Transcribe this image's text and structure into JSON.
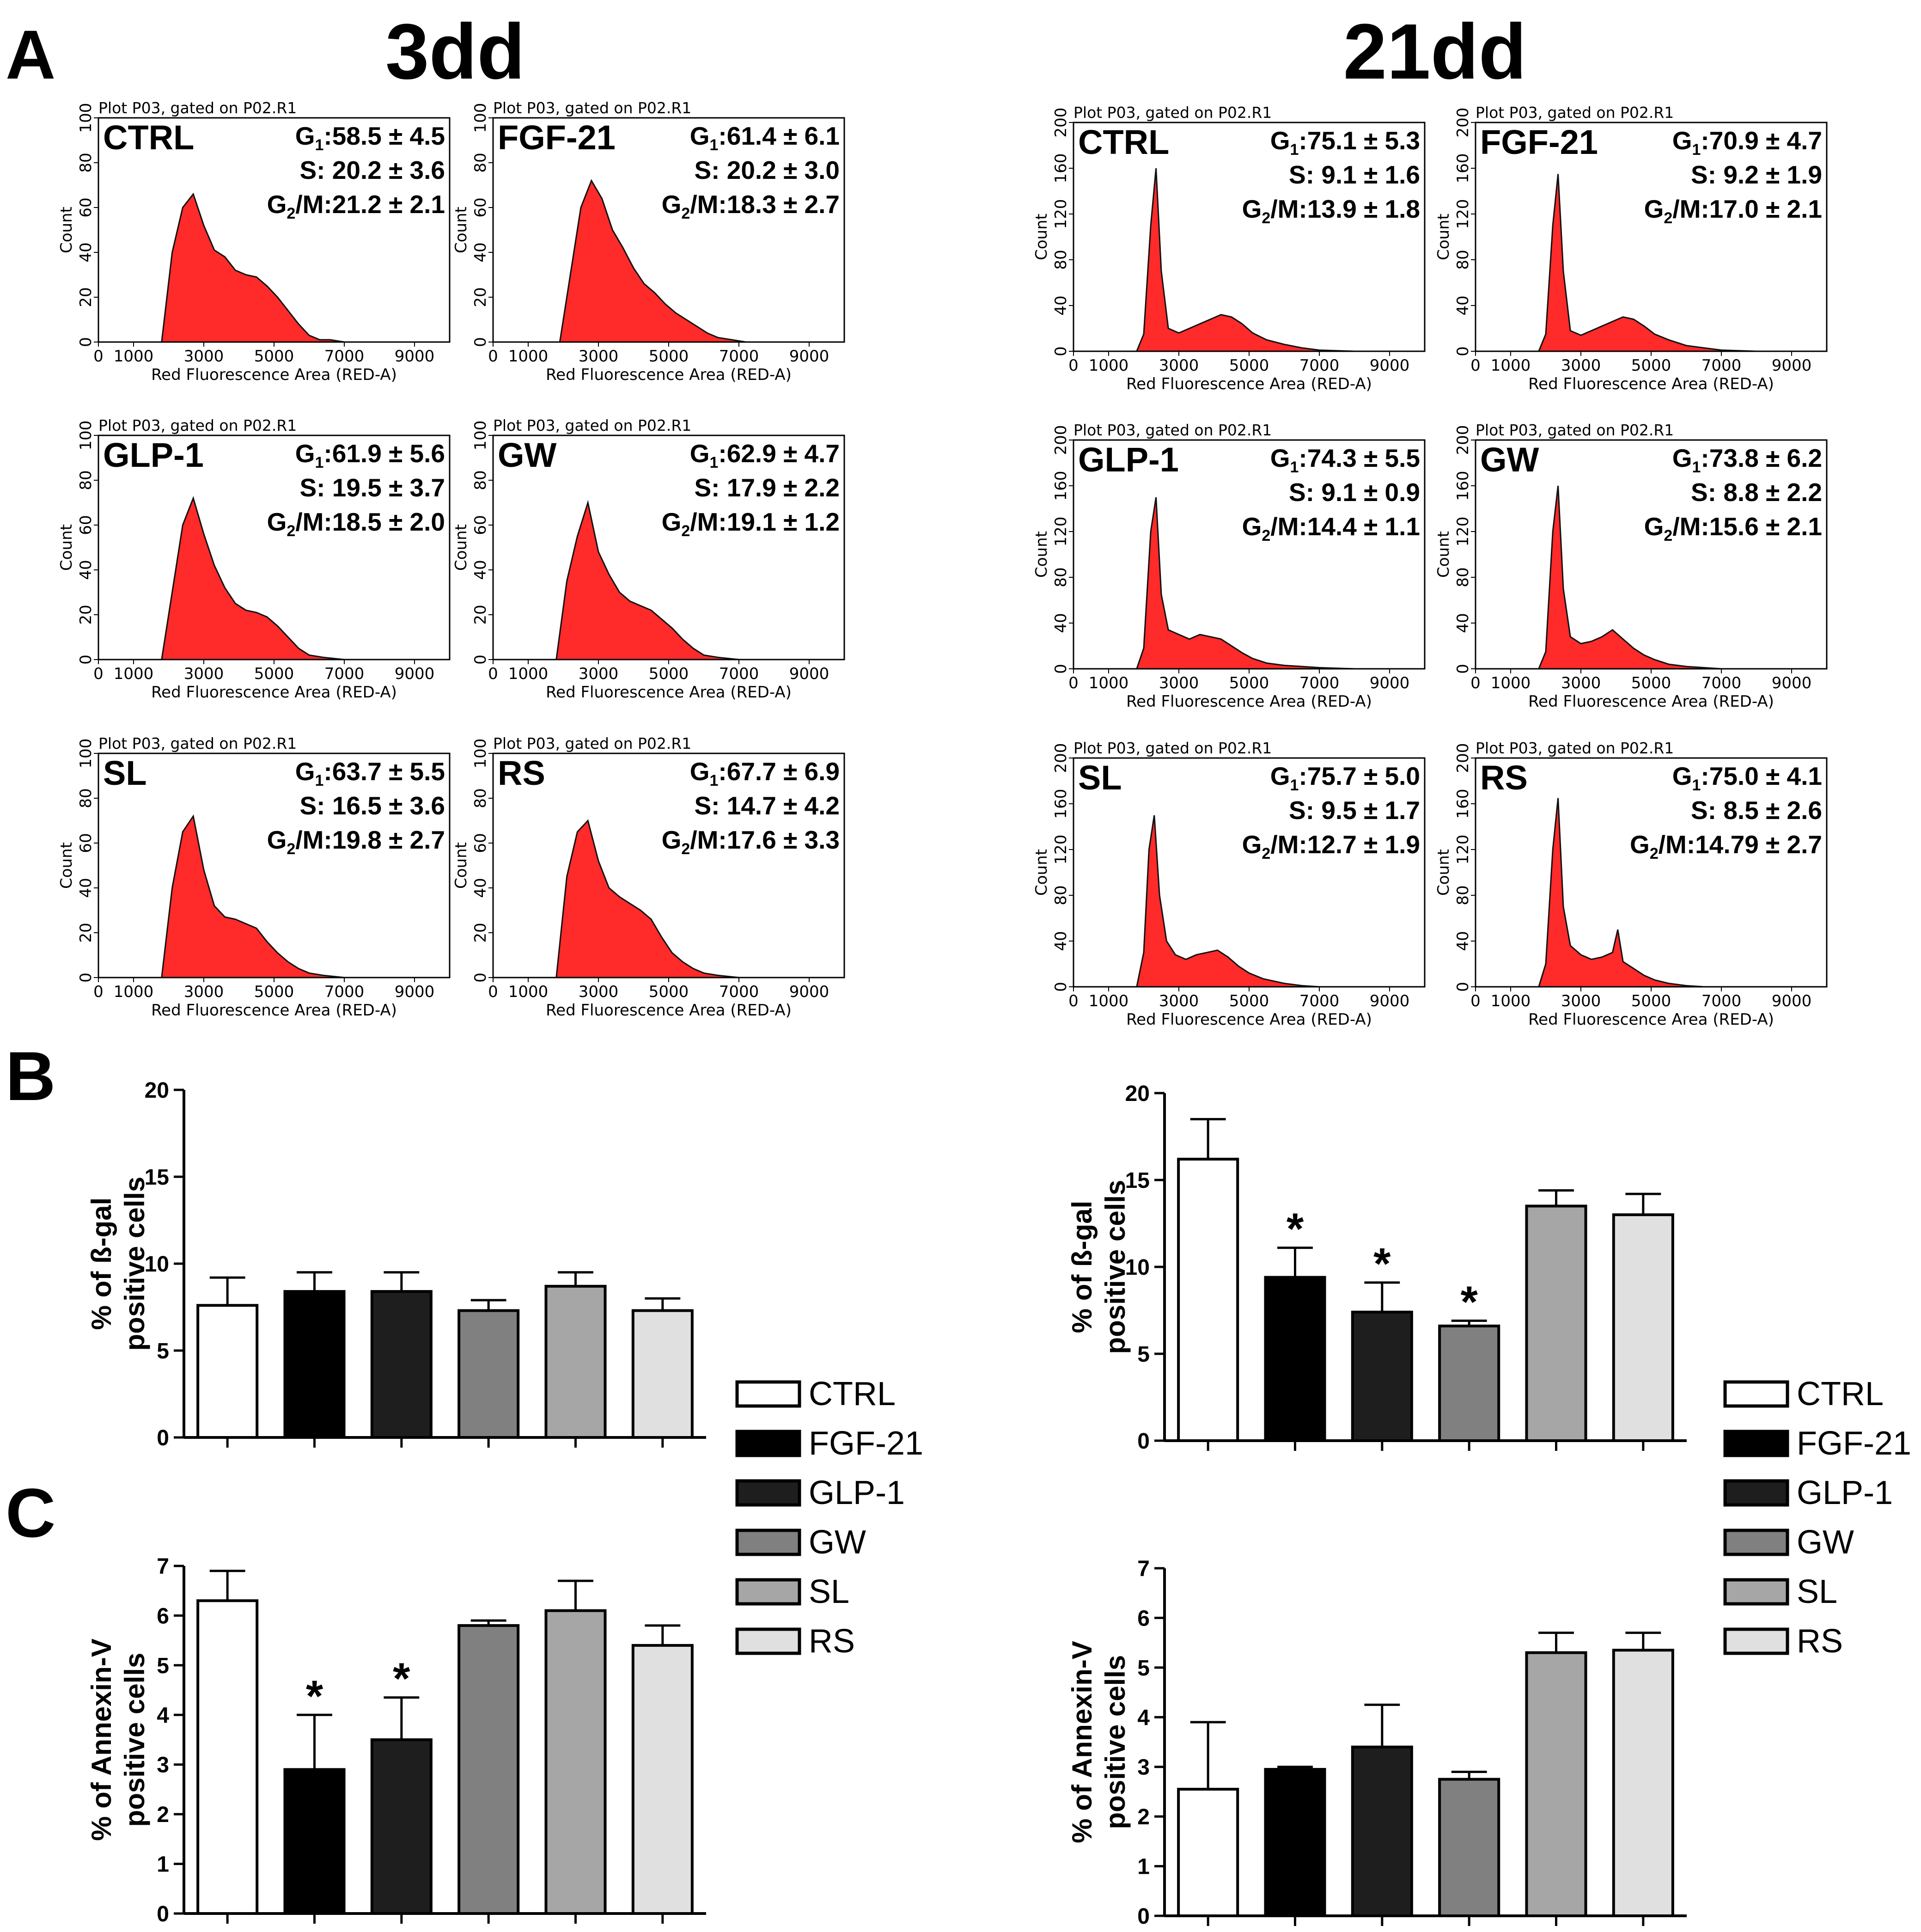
{
  "panel_letters": [
    "A",
    "B",
    "C"
  ],
  "column_titles": [
    "3dd",
    "21dd"
  ],
  "legend": {
    "items": [
      {
        "label": "CTRL",
        "color": "#ffffff"
      },
      {
        "label": "FGF-21",
        "color": "#000000"
      },
      {
        "label": "GLP-1",
        "color": "#1e1e1e"
      },
      {
        "label": "GW",
        "color": "#808080"
      },
      {
        "label": "SL",
        "color": "#a6a6a6"
      },
      {
        "label": "RS",
        "color": "#e0e0e0"
      }
    ]
  },
  "chart_data": [
    {
      "type": "area",
      "panel": "A",
      "column": "3dd",
      "group": "CTRL",
      "title": "Plot P03, gated on P02.R1",
      "xlabel": "Red Fluorescence Area (RED-A)",
      "ylabel": "Count",
      "xlim": [
        0,
        10000
      ],
      "ylim": [
        0,
        100
      ],
      "xticks": [
        "0",
        "1000",
        "3000",
        "5000",
        "7000",
        "9000"
      ],
      "yticks": [
        "0",
        "20",
        "40",
        "60",
        "80",
        "100"
      ],
      "stats": {
        "g1": "58.5 ± 4.5",
        "s": "20.2 ± 3.6",
        "g2m": "21.2 ± 2.1"
      },
      "x": [
        1800,
        2100,
        2400,
        2700,
        3000,
        3300,
        3600,
        3900,
        4200,
        4500,
        4800,
        5100,
        5400,
        5700,
        6000,
        6300,
        6600,
        7000,
        7500,
        8500,
        9500
      ],
      "values": [
        0,
        40,
        60,
        66,
        52,
        41,
        38,
        32,
        30,
        29,
        25,
        20,
        14,
        8,
        3,
        1,
        1,
        0,
        0,
        0,
        0
      ]
    },
    {
      "type": "area",
      "panel": "A",
      "column": "3dd",
      "group": "FGF-21",
      "title": "Plot P03, gated on P02.R1",
      "xlabel": "Red Fluorescence Area (RED-A)",
      "ylabel": "Count",
      "xlim": [
        0,
        10000
      ],
      "ylim": [
        0,
        100
      ],
      "xticks": [
        "0",
        "1000",
        "3000",
        "5000",
        "7000",
        "9000"
      ],
      "yticks": [
        "0",
        "20",
        "40",
        "60",
        "80",
        "100"
      ],
      "stats": {
        "g1": "61.4 ± 6.1",
        "s": "20.2 ± 3.0",
        "g2m": "18.3 ± 2.7"
      },
      "x": [
        1900,
        2200,
        2500,
        2800,
        3100,
        3400,
        3700,
        4000,
        4300,
        4600,
        4900,
        5200,
        5500,
        5800,
        6100,
        6400,
        6800,
        7200,
        8000,
        9000
      ],
      "values": [
        0,
        30,
        60,
        72,
        64,
        50,
        42,
        33,
        26,
        22,
        17,
        13,
        10,
        7,
        4,
        2,
        1,
        0,
        0,
        0
      ]
    },
    {
      "type": "area",
      "panel": "A",
      "column": "3dd",
      "group": "GLP-1",
      "title": "Plot P03, gated on P02.R1",
      "xlabel": "Red Fluorescence Area (RED-A)",
      "ylabel": "Count",
      "xlim": [
        0,
        10000
      ],
      "ylim": [
        0,
        100
      ],
      "xticks": [
        "0",
        "1000",
        "3000",
        "5000",
        "7000",
        "9000"
      ],
      "yticks": [
        "0",
        "20",
        "40",
        "60",
        "80",
        "100"
      ],
      "stats": {
        "g1": "61.9 ± 5.6",
        "s": "19.5 ± 3.7",
        "g2m": "18.5 ± 2.0"
      },
      "x": [
        1800,
        2100,
        2400,
        2700,
        3000,
        3300,
        3600,
        3900,
        4200,
        4500,
        4800,
        5100,
        5400,
        5700,
        6000,
        6400,
        7000,
        8000,
        9000
      ],
      "values": [
        0,
        30,
        60,
        72,
        56,
        42,
        32,
        25,
        22,
        21,
        19,
        15,
        10,
        5,
        2,
        1,
        0,
        0,
        0
      ]
    },
    {
      "type": "area",
      "panel": "A",
      "column": "3dd",
      "group": "GW",
      "title": "Plot P03, gated on P02.R1",
      "xlabel": "Red Fluorescence Area (RED-A)",
      "ylabel": "Count",
      "xlim": [
        0,
        10000
      ],
      "ylim": [
        0,
        100
      ],
      "xticks": [
        "0",
        "1000",
        "3000",
        "5000",
        "7000",
        "9000"
      ],
      "yticks": [
        "0",
        "20",
        "40",
        "60",
        "80",
        "100"
      ],
      "stats": {
        "g1": "62.9 ± 4.7",
        "s": "17.9 ± 2.2",
        "g2m": "19.1 ± 1.2"
      },
      "x": [
        1800,
        2100,
        2400,
        2700,
        3000,
        3300,
        3600,
        3900,
        4200,
        4500,
        4800,
        5100,
        5400,
        5700,
        6000,
        6400,
        7000,
        8000,
        9000
      ],
      "values": [
        0,
        35,
        55,
        70,
        48,
        38,
        30,
        26,
        24,
        22,
        18,
        14,
        9,
        5,
        2,
        1,
        0,
        0,
        0
      ]
    },
    {
      "type": "area",
      "panel": "A",
      "column": "3dd",
      "group": "SL",
      "title": "Plot P03, gated on P02.R1",
      "xlabel": "Red Fluorescence Area (RED-A)",
      "ylabel": "Count",
      "xlim": [
        0,
        10000
      ],
      "ylim": [
        0,
        100
      ],
      "xticks": [
        "0",
        "1000",
        "3000",
        "5000",
        "7000",
        "9000"
      ],
      "yticks": [
        "0",
        "20",
        "40",
        "60",
        "80",
        "100"
      ],
      "stats": {
        "g1": "63.7 ± 5.5",
        "s": "16.5 ± 3.6",
        "g2m": "19.8 ± 2.7"
      },
      "x": [
        1800,
        2100,
        2400,
        2700,
        3000,
        3300,
        3600,
        3900,
        4200,
        4500,
        4800,
        5100,
        5400,
        5700,
        6000,
        6400,
        7000,
        8000,
        9000
      ],
      "values": [
        0,
        40,
        65,
        72,
        48,
        32,
        27,
        26,
        24,
        22,
        16,
        11,
        7,
        4,
        2,
        1,
        0,
        0,
        0
      ]
    },
    {
      "type": "area",
      "panel": "A",
      "column": "3dd",
      "group": "RS",
      "title": "Plot P03, gated on P02.R1",
      "xlabel": "Red Fluorescence Area (RED-A)",
      "ylabel": "Count",
      "xlim": [
        0,
        10000
      ],
      "ylim": [
        0,
        100
      ],
      "xticks": [
        "0",
        "1000",
        "3000",
        "5000",
        "7000",
        "9000"
      ],
      "yticks": [
        "0",
        "20",
        "40",
        "60",
        "80",
        "100"
      ],
      "stats": {
        "g1": "67.7 ± 6.9",
        "s": "14.7 ± 4.2",
        "g2m": "17.6 ± 3.3"
      },
      "x": [
        1800,
        2100,
        2400,
        2700,
        3000,
        3300,
        3600,
        3900,
        4200,
        4500,
        4800,
        5100,
        5400,
        5700,
        6000,
        6400,
        7000,
        8000,
        9000
      ],
      "values": [
        0,
        45,
        65,
        70,
        52,
        40,
        36,
        33,
        30,
        26,
        18,
        11,
        7,
        4,
        2,
        1,
        0,
        0,
        0
      ]
    },
    {
      "type": "area",
      "panel": "A",
      "column": "21dd",
      "group": "CTRL",
      "title": "Plot P03, gated on P02.R1",
      "xlabel": "Red Fluorescence Area (RED-A)",
      "ylabel": "Count",
      "xlim": [
        0,
        10000
      ],
      "ylim": [
        0,
        200
      ],
      "xticks": [
        "0",
        "1000",
        "3000",
        "5000",
        "7000",
        "9000"
      ],
      "yticks": [
        "0",
        "40",
        "80",
        "120",
        "160",
        "200"
      ],
      "stats": {
        "g1": "75.1 ± 5.3",
        "s": "9.1 ± 1.6",
        "g2m": "13.9 ± 1.8"
      },
      "x": [
        1800,
        2000,
        2200,
        2350,
        2500,
        2700,
        3000,
        3300,
        3600,
        3900,
        4200,
        4500,
        4800,
        5100,
        5500,
        6000,
        6500,
        7000,
        8000,
        9000,
        9800
      ],
      "values": [
        0,
        15,
        110,
        160,
        70,
        20,
        16,
        20,
        24,
        28,
        32,
        30,
        24,
        16,
        10,
        6,
        3,
        1,
        0,
        0,
        0
      ]
    },
    {
      "type": "area",
      "panel": "A",
      "column": "21dd",
      "group": "FGF-21",
      "title": "Plot P03, gated on P02.R1",
      "xlabel": "Red Fluorescence Area (RED-A)",
      "ylabel": "Count",
      "xlim": [
        0,
        10000
      ],
      "ylim": [
        0,
        200
      ],
      "xticks": [
        "0",
        "1000",
        "3000",
        "5000",
        "7000",
        "9000"
      ],
      "yticks": [
        "0",
        "40",
        "80",
        "120",
        "160",
        "200"
      ],
      "stats": {
        "g1": "70.9 ± 4.7",
        "s": "9.2 ± 1.9",
        "g2m": "17.0 ± 2.1"
      },
      "x": [
        1800,
        2000,
        2200,
        2350,
        2500,
        2700,
        3000,
        3300,
        3600,
        3900,
        4200,
        4500,
        4800,
        5100,
        5500,
        6000,
        6500,
        7000,
        8000,
        9000,
        9800
      ],
      "values": [
        0,
        15,
        110,
        155,
        70,
        18,
        14,
        18,
        22,
        26,
        30,
        28,
        22,
        15,
        10,
        5,
        3,
        1,
        0,
        0,
        0
      ]
    },
    {
      "type": "area",
      "panel": "A",
      "column": "21dd",
      "group": "GLP-1",
      "title": "Plot P03, gated on P02.R1",
      "xlabel": "Red Fluorescence Area (RED-A)",
      "ylabel": "Count",
      "xlim": [
        0,
        10000
      ],
      "ylim": [
        0,
        200
      ],
      "xticks": [
        "0",
        "1000",
        "3000",
        "5000",
        "7000",
        "9000"
      ],
      "yticks": [
        "0",
        "40",
        "80",
        "120",
        "160",
        "200"
      ],
      "stats": {
        "g1": "74.3 ± 5.5",
        "s": "9.1 ± 0.9",
        "g2m": "14.4 ± 1.1"
      },
      "x": [
        1800,
        2000,
        2200,
        2350,
        2500,
        2700,
        3000,
        3300,
        3600,
        3900,
        4200,
        4500,
        4800,
        5100,
        5500,
        6000,
        6500,
        7000,
        8000,
        9000,
        9800
      ],
      "values": [
        0,
        18,
        120,
        150,
        65,
        34,
        30,
        26,
        30,
        28,
        26,
        20,
        14,
        9,
        5,
        3,
        2,
        1,
        0,
        0,
        0
      ]
    },
    {
      "type": "area",
      "panel": "A",
      "column": "21dd",
      "group": "GW",
      "title": "Plot P03, gated on P02.R1",
      "xlabel": "Red Fluorescence Area (RED-A)",
      "ylabel": "Count",
      "xlim": [
        0,
        10000
      ],
      "ylim": [
        0,
        200
      ],
      "xticks": [
        "0",
        "1000",
        "3000",
        "5000",
        "7000",
        "9000"
      ],
      "yticks": [
        "0",
        "40",
        "80",
        "120",
        "160",
        "200"
      ],
      "stats": {
        "g1": "73.8 ± 6.2",
        "s": "8.8 ± 2.2",
        "g2m": "15.6 ± 2.1"
      },
      "x": [
        1800,
        2000,
        2200,
        2350,
        2500,
        2700,
        3000,
        3300,
        3600,
        3900,
        4200,
        4500,
        4800,
        5100,
        5500,
        6000,
        6500,
        7000,
        8000,
        9000,
        9800
      ],
      "values": [
        0,
        15,
        120,
        160,
        70,
        28,
        22,
        24,
        28,
        34,
        26,
        18,
        12,
        8,
        4,
        2,
        1,
        0,
        0,
        0,
        0
      ]
    },
    {
      "type": "area",
      "panel": "A",
      "column": "21dd",
      "group": "SL",
      "title": "Plot P03, gated on P02.R1",
      "xlabel": "Red Fluorescence Area (RED-A)",
      "ylabel": "Count",
      "xlim": [
        0,
        10000
      ],
      "ylim": [
        0,
        200
      ],
      "xticks": [
        "0",
        "1000",
        "3000",
        "5000",
        "7000",
        "9000"
      ],
      "yticks": [
        "0",
        "40",
        "80",
        "120",
        "160",
        "200"
      ],
      "stats": {
        "g1": "75.7 ± 5.0",
        "s": "9.5 ± 1.7",
        "g2m": "12.7 ± 1.9"
      },
      "x": [
        1800,
        2000,
        2150,
        2300,
        2450,
        2650,
        2900,
        3200,
        3500,
        3800,
        4100,
        4400,
        4700,
        5000,
        5400,
        6000,
        6500,
        7000,
        8000,
        9000,
        9800
      ],
      "values": [
        0,
        30,
        120,
        150,
        80,
        40,
        28,
        24,
        28,
        30,
        32,
        26,
        18,
        12,
        7,
        3,
        1,
        0,
        0,
        0,
        0
      ]
    },
    {
      "type": "area",
      "panel": "A",
      "column": "21dd",
      "group": "RS",
      "title": "Plot P03, gated on P02.R1",
      "xlabel": "Red Fluorescence Area (RED-A)",
      "ylabel": "Count",
      "xlim": [
        0,
        10000
      ],
      "ylim": [
        0,
        200
      ],
      "xticks": [
        "0",
        "1000",
        "3000",
        "5000",
        "7000",
        "9000"
      ],
      "yticks": [
        "0",
        "40",
        "80",
        "120",
        "160",
        "200"
      ],
      "stats": {
        "g1": "75.0 ± 4.1",
        "s": "8.5 ± 2.6",
        "g2m": "14.79 ± 2.7"
      },
      "x": [
        1800,
        2000,
        2200,
        2350,
        2500,
        2700,
        3000,
        3300,
        3600,
        3900,
        4050,
        4200,
        4500,
        4800,
        5100,
        5500,
        6000,
        6500,
        7000,
        8000,
        9800
      ],
      "values": [
        0,
        20,
        120,
        165,
        70,
        36,
        28,
        24,
        26,
        30,
        50,
        22,
        16,
        10,
        6,
        3,
        1,
        0,
        0,
        0,
        0
      ]
    },
    {
      "type": "bar",
      "panel": "B",
      "column": "3dd",
      "ylabel": "% of ß-gal positive cells",
      "ylim": [
        0,
        20
      ],
      "yticks": [
        "0",
        "5",
        "10",
        "15",
        "20"
      ],
      "categories": [
        "CTRL",
        "FGF-21",
        "GLP-1",
        "GW",
        "SL",
        "RS"
      ],
      "values": [
        7.6,
        8.4,
        8.4,
        7.3,
        8.7,
        7.3
      ],
      "errors": [
        1.6,
        1.1,
        1.1,
        0.6,
        0.8,
        0.7
      ],
      "significant": [
        false,
        false,
        false,
        false,
        false,
        false
      ],
      "annotation": "*"
    },
    {
      "type": "bar",
      "panel": "B",
      "column": "21dd",
      "ylabel": "% of ß-gal positive cells",
      "ylim": [
        0,
        20
      ],
      "yticks": [
        "0",
        "5",
        "10",
        "15",
        "20"
      ],
      "categories": [
        "CTRL",
        "FGF-21",
        "GLP-1",
        "GW",
        "SL",
        "RS"
      ],
      "values": [
        16.2,
        9.4,
        7.4,
        6.6,
        13.5,
        13.0
      ],
      "errors": [
        2.3,
        1.7,
        1.7,
        0.3,
        0.9,
        1.2
      ],
      "significant": [
        false,
        true,
        true,
        true,
        false,
        false
      ],
      "annotation": "*"
    },
    {
      "type": "bar",
      "panel": "C",
      "column": "3dd",
      "ylabel": "% of Annexin-V positive cells",
      "ylim": [
        0,
        7
      ],
      "yticks": [
        "0",
        "1",
        "2",
        "3",
        "4",
        "5",
        "6",
        "7"
      ],
      "categories": [
        "CTRL",
        "FGF-21",
        "GLP-1",
        "GW",
        "SL",
        "RS"
      ],
      "values": [
        6.3,
        2.9,
        3.5,
        5.8,
        6.1,
        5.4
      ],
      "errors": [
        0.6,
        1.1,
        0.85,
        0.1,
        0.6,
        0.4
      ],
      "significant": [
        false,
        true,
        true,
        false,
        false,
        false
      ],
      "annotation": "*"
    },
    {
      "type": "bar",
      "panel": "C",
      "column": "21dd",
      "ylabel": "% of Annexin-V positive cells",
      "ylim": [
        0,
        7
      ],
      "yticks": [
        "0",
        "1",
        "2",
        "3",
        "4",
        "5",
        "6",
        "7"
      ],
      "categories": [
        "CTRL",
        "FGF-21",
        "GLP-1",
        "GW",
        "SL",
        "RS"
      ],
      "values": [
        2.55,
        2.95,
        3.4,
        2.75,
        5.3,
        5.35
      ],
      "errors": [
        1.35,
        0.05,
        0.85,
        0.15,
        0.4,
        0.35
      ],
      "significant": [
        false,
        false,
        false,
        false,
        false,
        false
      ],
      "annotation": "*"
    }
  ]
}
